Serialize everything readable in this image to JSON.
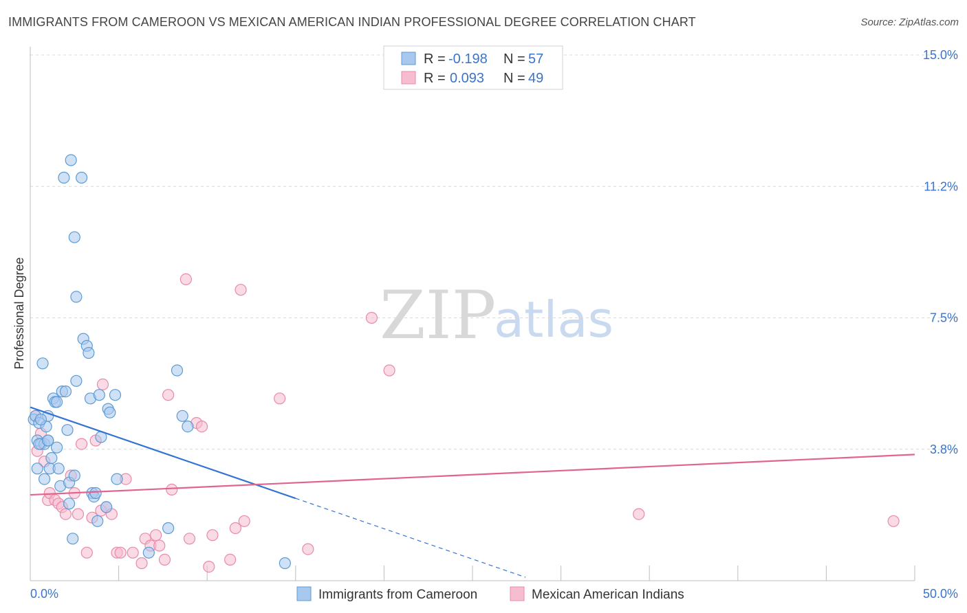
{
  "header": {
    "title": "IMMIGRANTS FROM CAMEROON VS MEXICAN AMERICAN INDIAN PROFESSIONAL DEGREE CORRELATION CHART",
    "source": "Source: ZipAtlas.com"
  },
  "watermark": {
    "zip": "ZIP",
    "atlas": "atlas"
  },
  "colors": {
    "blue": "#5b9bd5",
    "blue_fill": "#a9c8ee",
    "blue_line": "#3374d1",
    "pink": "#e88aa8",
    "pink_fill": "#f6bcd0",
    "pink_line": "#e0648f",
    "tick_text": "#3a74c8",
    "grid": "#d9d9d9"
  },
  "legend": {
    "rows": [
      {
        "r_label": "R = ",
        "r_value": "-0.198",
        "n_label": "N = ",
        "n_value": "57"
      },
      {
        "r_label": "R = ",
        "r_value": "0.093",
        "n_label": "N = ",
        "n_value": "49"
      }
    ]
  },
  "chart_data": {
    "type": "scatter",
    "title": "IMMIGRANTS FROM CAMEROON VS MEXICAN AMERICAN INDIAN PROFESSIONAL DEGREE CORRELATION CHART",
    "xlabel": "",
    "ylabel": "Professional Degree",
    "xlim": [
      0,
      50
    ],
    "ylim": [
      0,
      15
    ],
    "x_tick_labels": [
      "0.0%",
      "50.0%"
    ],
    "y_ticks": [
      3.75,
      7.5,
      11.25,
      15.0
    ],
    "y_tick_labels": [
      "3.8%",
      "7.5%",
      "11.2%",
      "15.0%"
    ],
    "series": [
      {
        "name": "Immigrants from Cameroon",
        "color": "blue",
        "R": -0.198,
        "N": 57,
        "trend": {
          "x0": 0.0,
          "y0": 4.95,
          "x1": 15.0,
          "y1": 2.35,
          "dashed_to_x": 28.0
        },
        "points": [
          [
            0.2,
            4.6
          ],
          [
            0.3,
            4.7
          ],
          [
            0.4,
            4.0
          ],
          [
            0.4,
            3.2
          ],
          [
            0.5,
            4.5
          ],
          [
            0.6,
            3.9
          ],
          [
            0.7,
            6.2
          ],
          [
            0.8,
            3.9
          ],
          [
            0.8,
            2.9
          ],
          [
            0.9,
            4.4
          ],
          [
            1.0,
            4.0
          ],
          [
            1.0,
            4.7
          ],
          [
            1.1,
            3.2
          ],
          [
            1.2,
            3.5
          ],
          [
            1.3,
            5.2
          ],
          [
            1.4,
            5.1
          ],
          [
            1.5,
            5.1
          ],
          [
            1.5,
            3.8
          ],
          [
            1.6,
            3.2
          ],
          [
            1.7,
            2.7
          ],
          [
            1.8,
            5.4
          ],
          [
            1.9,
            11.5
          ],
          [
            2.0,
            5.4
          ],
          [
            2.1,
            4.3
          ],
          [
            2.2,
            2.8
          ],
          [
            2.3,
            12.0
          ],
          [
            2.4,
            1.2
          ],
          [
            2.5,
            9.8
          ],
          [
            2.5,
            3.0
          ],
          [
            2.6,
            5.7
          ],
          [
            2.6,
            8.1
          ],
          [
            2.9,
            11.5
          ],
          [
            3.0,
            6.9
          ],
          [
            3.2,
            6.7
          ],
          [
            3.3,
            6.5
          ],
          [
            3.4,
            5.2
          ],
          [
            3.5,
            2.5
          ],
          [
            3.6,
            2.4
          ],
          [
            3.8,
            1.7
          ],
          [
            3.9,
            5.3
          ],
          [
            4.0,
            4.1
          ],
          [
            4.3,
            2.1
          ],
          [
            4.4,
            4.9
          ],
          [
            4.5,
            4.8
          ],
          [
            4.8,
            5.3
          ],
          [
            4.9,
            2.9
          ],
          [
            6.7,
            0.8
          ],
          [
            7.8,
            1.5
          ],
          [
            8.3,
            6.0
          ],
          [
            8.6,
            4.7
          ],
          [
            8.9,
            4.4
          ],
          [
            14.4,
            0.5
          ],
          [
            0.5,
            3.9
          ],
          [
            0.6,
            4.6
          ],
          [
            2.2,
            2.2
          ],
          [
            1.0,
            4.0
          ],
          [
            3.7,
            2.5
          ]
        ]
      },
      {
        "name": "Mexican American Indians",
        "color": "pink",
        "R": 0.093,
        "N": 49,
        "trend": {
          "x0": 0.0,
          "y0": 2.45,
          "x1": 50.0,
          "y1": 3.6
        },
        "points": [
          [
            0.3,
            4.7
          ],
          [
            0.4,
            3.7
          ],
          [
            0.8,
            3.4
          ],
          [
            1.0,
            2.3
          ],
          [
            1.1,
            2.5
          ],
          [
            1.4,
            2.3
          ],
          [
            1.6,
            2.2
          ],
          [
            1.8,
            2.1
          ],
          [
            2.0,
            1.9
          ],
          [
            2.3,
            3.0
          ],
          [
            2.5,
            2.5
          ],
          [
            2.7,
            1.9
          ],
          [
            2.9,
            3.9
          ],
          [
            3.2,
            0.8
          ],
          [
            3.5,
            1.8
          ],
          [
            3.7,
            4.0
          ],
          [
            4.0,
            2.0
          ],
          [
            4.1,
            5.6
          ],
          [
            4.3,
            2.1
          ],
          [
            4.6,
            1.9
          ],
          [
            4.9,
            0.8
          ],
          [
            5.1,
            0.8
          ],
          [
            5.4,
            2.9
          ],
          [
            5.8,
            0.8
          ],
          [
            6.3,
            0.5
          ],
          [
            6.5,
            1.2
          ],
          [
            6.8,
            1.0
          ],
          [
            7.1,
            1.3
          ],
          [
            7.3,
            1.0
          ],
          [
            7.6,
            0.6
          ],
          [
            7.8,
            5.3
          ],
          [
            8.0,
            2.6
          ],
          [
            8.8,
            8.6
          ],
          [
            9.0,
            1.2
          ],
          [
            9.4,
            4.5
          ],
          [
            9.7,
            4.4
          ],
          [
            10.1,
            0.4
          ],
          [
            10.3,
            1.3
          ],
          [
            11.3,
            0.6
          ],
          [
            11.6,
            1.5
          ],
          [
            11.9,
            8.3
          ],
          [
            12.1,
            1.7
          ],
          [
            14.1,
            5.2
          ],
          [
            15.7,
            0.9
          ],
          [
            19.3,
            7.5
          ],
          [
            20.3,
            6.0
          ],
          [
            34.4,
            1.9
          ],
          [
            48.8,
            1.7
          ],
          [
            0.6,
            4.2
          ]
        ]
      }
    ]
  },
  "bottom_legend": {
    "items": [
      {
        "label": "Immigrants from Cameroon",
        "color": "blue"
      },
      {
        "label": "Mexican American Indians",
        "color": "pink"
      }
    ]
  }
}
